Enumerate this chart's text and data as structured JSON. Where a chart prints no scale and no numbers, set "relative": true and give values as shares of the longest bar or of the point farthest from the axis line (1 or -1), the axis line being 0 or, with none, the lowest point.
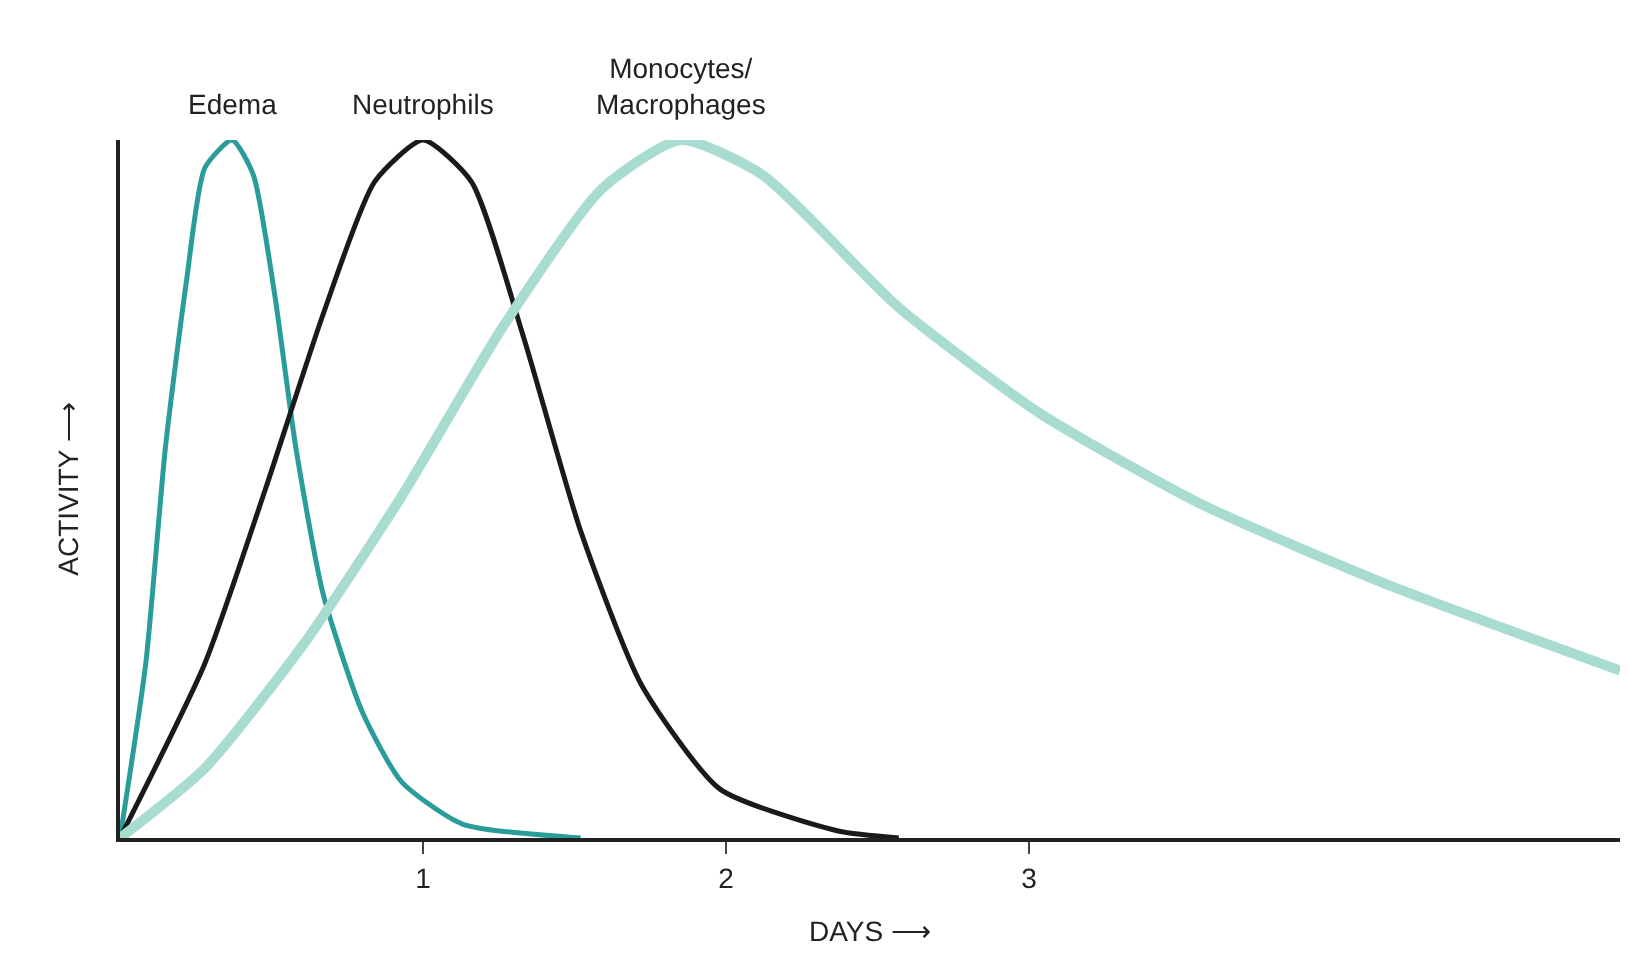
{
  "chart_data": {
    "type": "line",
    "relative": true,
    "xlabel": "DAYS ⟶",
    "ylabel": "ACTIVITY ⟶",
    "xlim": [
      0,
      4.95
    ],
    "xticks": [
      1,
      2,
      3
    ],
    "legend": false,
    "marker": "none",
    "line_style": "solid",
    "tick_labels": "x",
    "series": [
      {
        "name": "Edema",
        "color": "#2a9d9a",
        "x": [
          0,
          0.085,
          0.15,
          0.22,
          0.28,
          0.37,
          0.44,
          0.51,
          0.58,
          0.67,
          0.8,
          0.93,
          1.13,
          1.52
        ],
        "values": [
          0,
          0.25,
          0.56,
          0.8,
          0.96,
          1,
          0.95,
          0.78,
          0.56,
          0.35,
          0.18,
          0.08,
          0.02,
          0
        ]
      },
      {
        "name": "Neutrophils",
        "color": "#1a1a1a",
        "x": [
          0,
          0.28,
          0.48,
          0.67,
          0.84,
          1.0,
          1.16,
          1.33,
          1.52,
          1.72,
          1.98,
          2.37,
          2.57
        ],
        "values": [
          0,
          0.25,
          0.5,
          0.75,
          0.94,
          1,
          0.94,
          0.72,
          0.44,
          0.22,
          0.07,
          0.01,
          0
        ]
      },
      {
        "name": "Monocytes/\nMacrophages",
        "color": "#a8dcd0",
        "x": [
          0,
          0.28,
          0.61,
          0.93,
          1.26,
          1.59,
          1.85,
          2.12,
          2.57,
          3.03,
          3.56,
          4.2,
          4.95
        ],
        "values": [
          0,
          0.1,
          0.28,
          0.49,
          0.73,
          0.93,
          1,
          0.95,
          0.76,
          0.61,
          0.48,
          0.36,
          0.24
        ]
      }
    ]
  }
}
